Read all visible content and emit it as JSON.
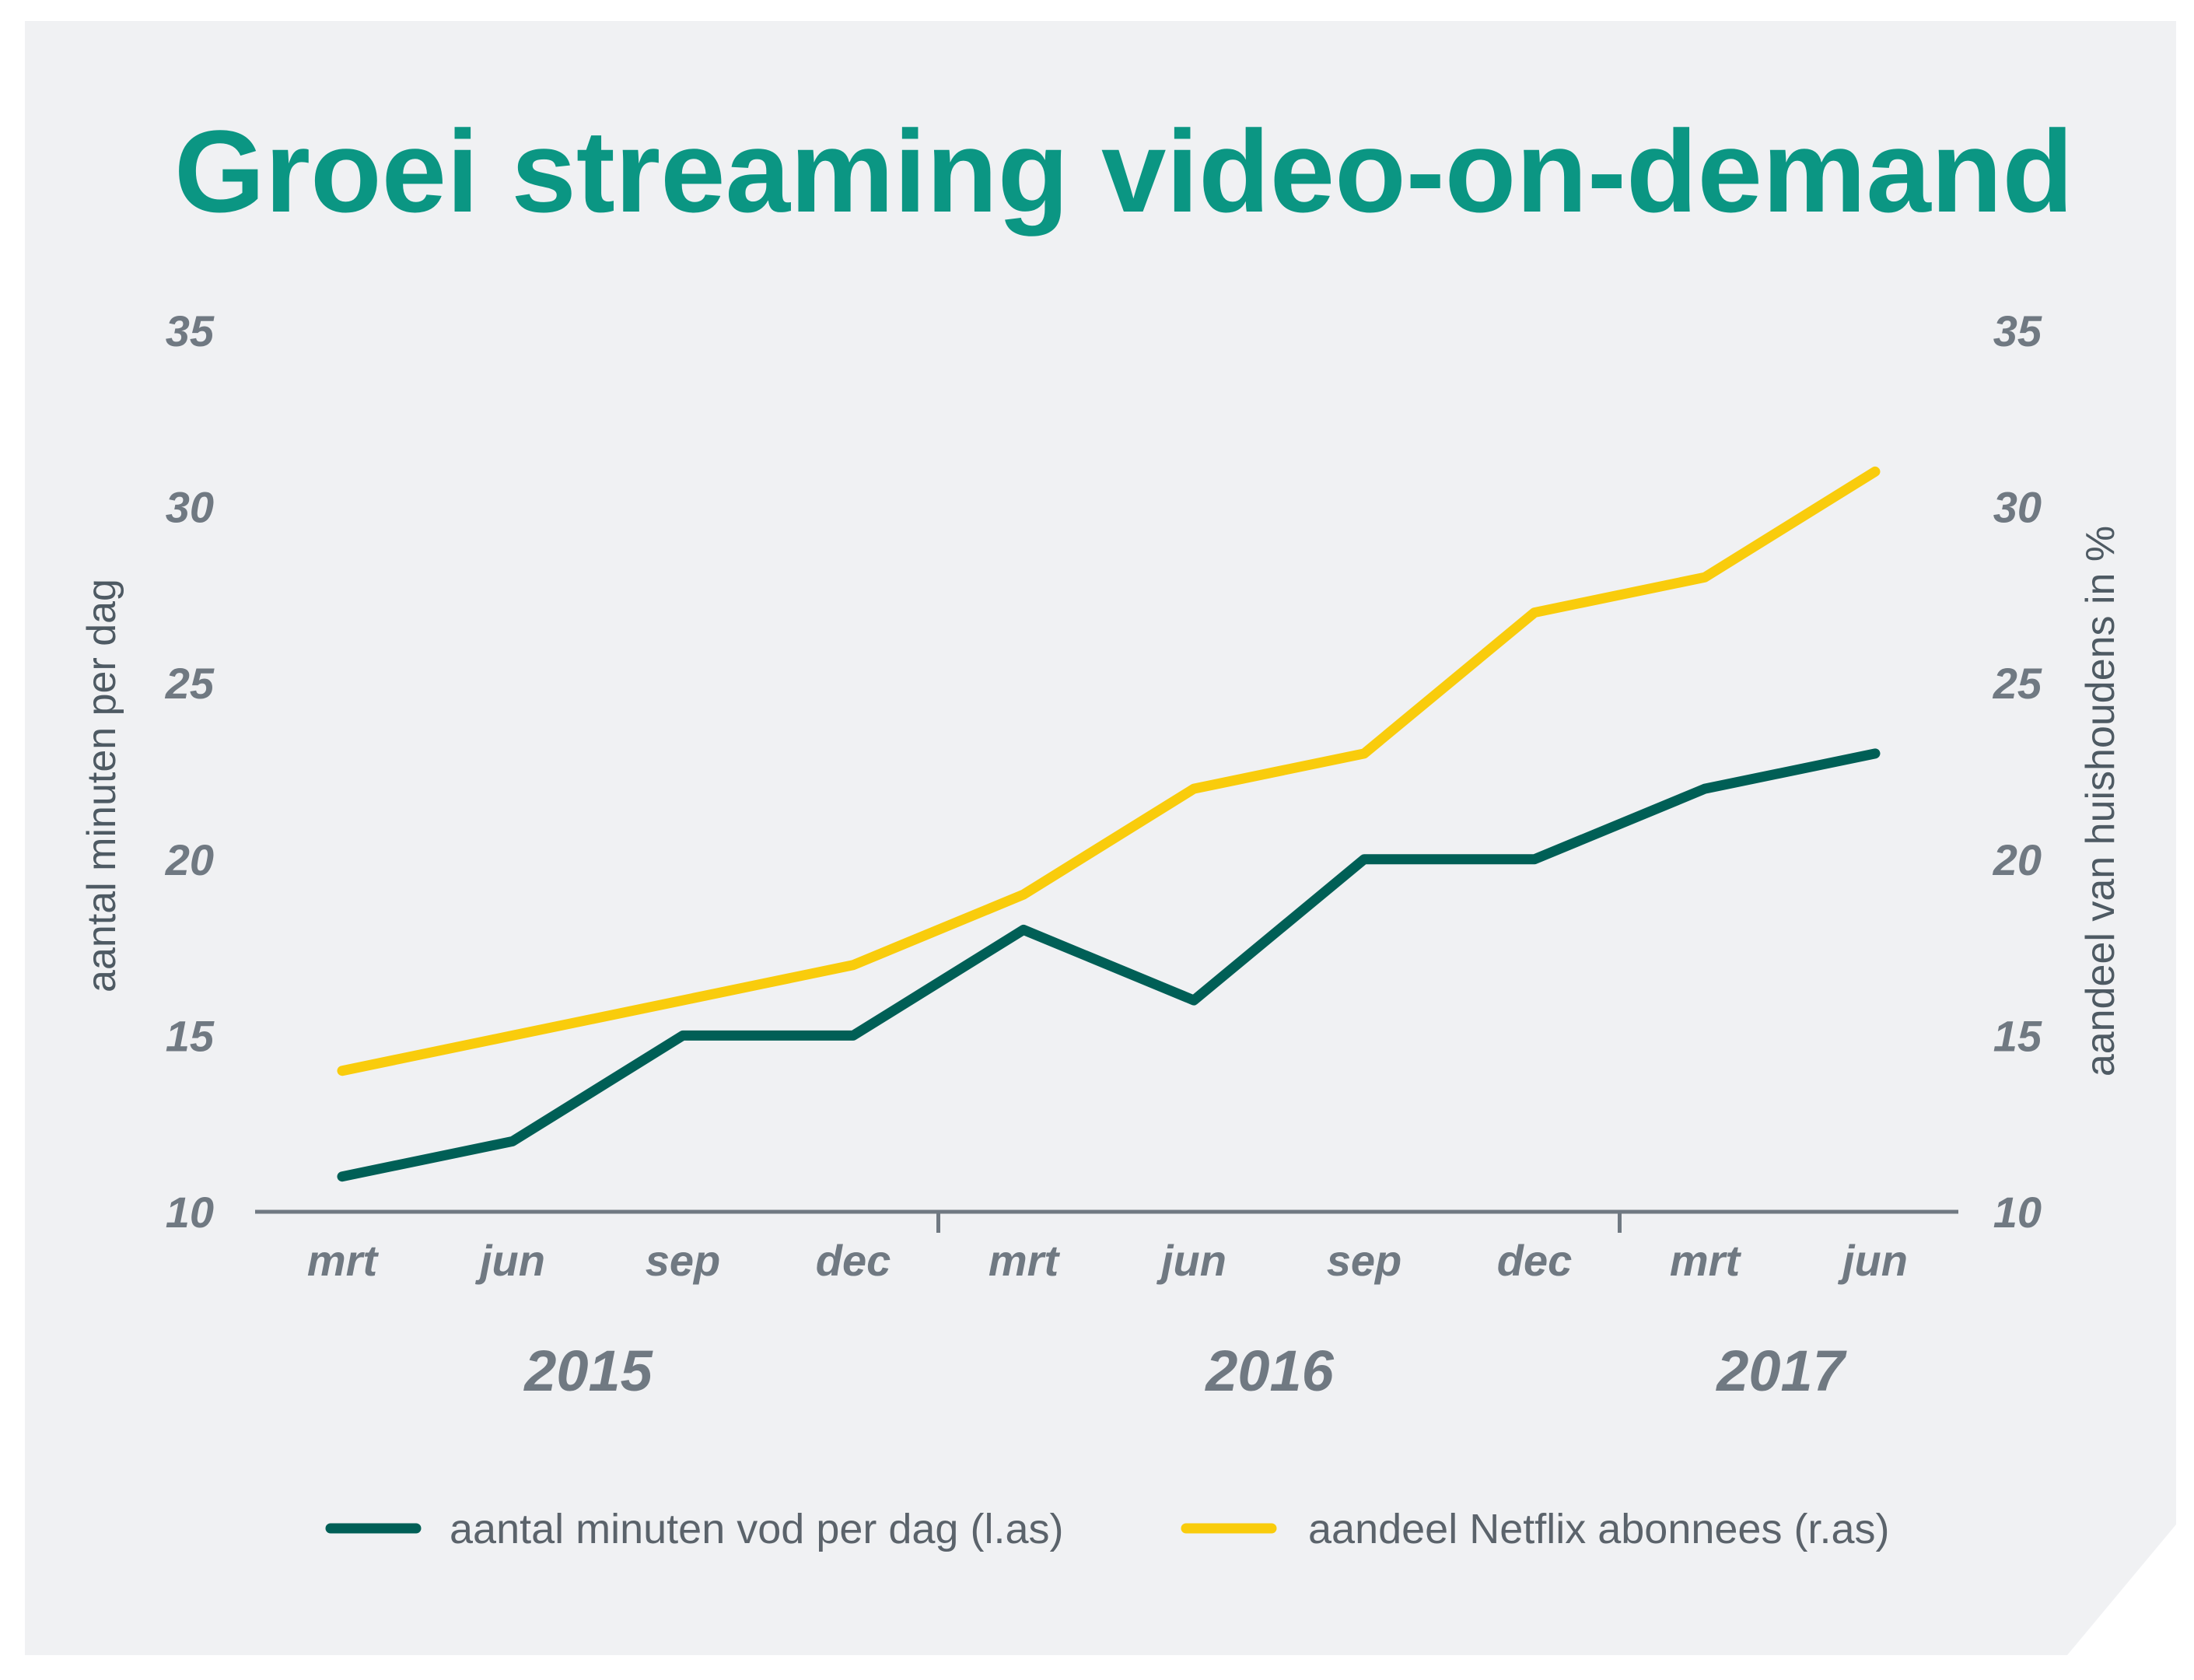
{
  "title": "Groei streaming video-on-demand",
  "colors": {
    "background": "#f0f1f3",
    "title": "#0b9683",
    "series_minutes": "#005f56",
    "series_netflix": "#f9cc0c",
    "axis": "#707982"
  },
  "chart_data": {
    "type": "line",
    "title": "Groei streaming video-on-demand",
    "categories": [
      "mrt",
      "jun",
      "sep",
      "dec",
      "mrt",
      "jun",
      "sep",
      "dec",
      "mrt",
      "jun"
    ],
    "years": [
      {
        "label": "2015",
        "span": [
          0,
          3
        ]
      },
      {
        "label": "2016",
        "span": [
          4,
          7
        ]
      },
      {
        "label": "2017",
        "span": [
          8,
          9
        ]
      }
    ],
    "ylabel_left": "aantal minuten per dag",
    "ylabel_right": "aandeel van huishoudens in %",
    "ylim": [
      10,
      35
    ],
    "yticks": [
      10,
      15,
      20,
      25,
      30,
      35
    ],
    "grid": false,
    "legend_position": "bottom",
    "series": [
      {
        "name": "aantal minuten vod per dag (l.as)",
        "axis": "left",
        "color": "#005f56",
        "values": [
          11,
          12,
          15,
          15,
          18,
          16,
          20,
          20,
          22,
          23
        ]
      },
      {
        "name": "aandeel Netflix abonnees (r.as)",
        "axis": "right",
        "color": "#f9cc0c",
        "values": [
          14,
          15,
          16,
          17,
          19,
          22,
          23,
          27,
          28,
          31
        ]
      }
    ]
  }
}
